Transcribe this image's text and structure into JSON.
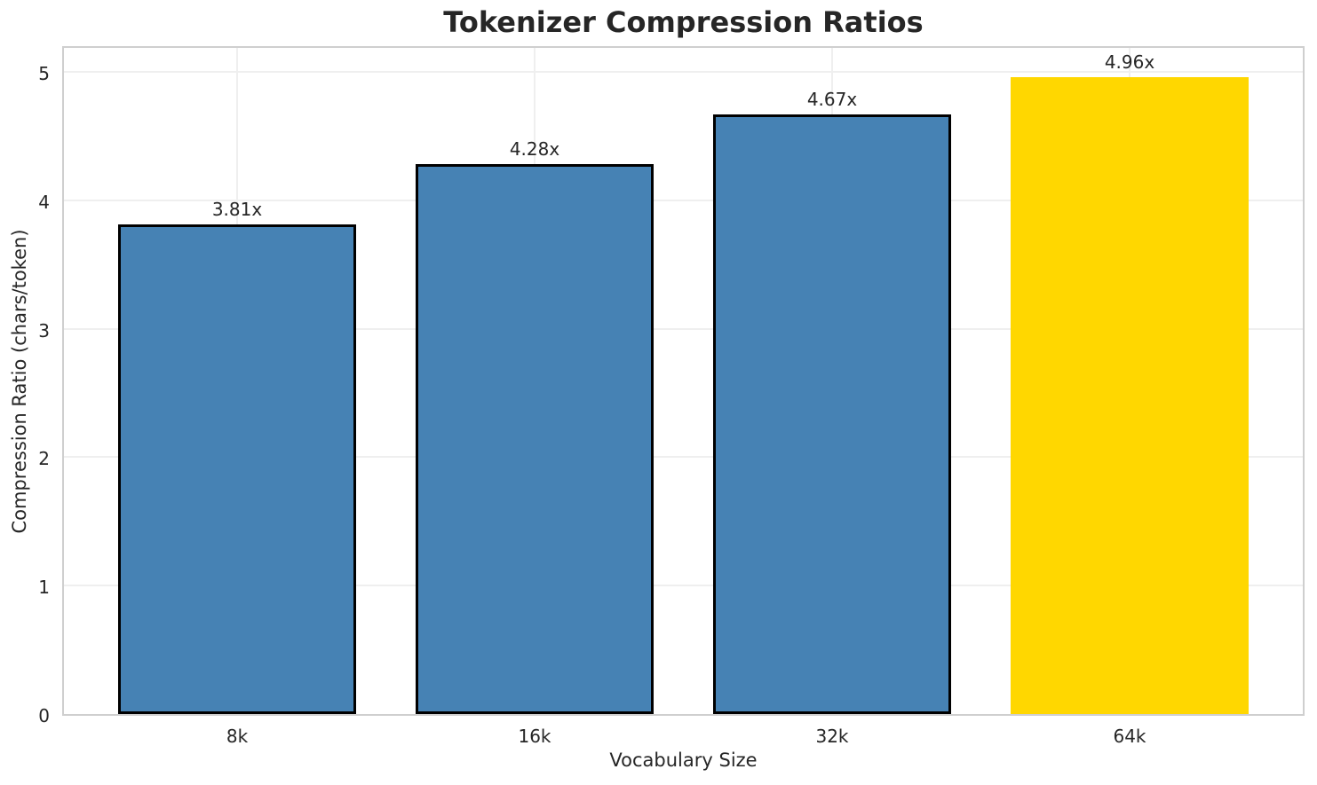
{
  "chart_data": {
    "type": "bar",
    "title": "Tokenizer Compression Ratios",
    "xlabel": "Vocabulary Size",
    "ylabel": "Compression Ratio (chars/token)",
    "categories": [
      "8k",
      "16k",
      "32k",
      "64k"
    ],
    "values": [
      3.81,
      4.28,
      4.67,
      4.96
    ],
    "bar_labels": [
      "3.81x",
      "4.28x",
      "4.67x",
      "4.96x"
    ],
    "bar_colors": [
      "#4682B4",
      "#4682B4",
      "#4682B4",
      "#FFD700"
    ],
    "bar_edges": [
      true,
      true,
      true,
      false
    ],
    "highlight_index": 3,
    "yticks": [
      0,
      1,
      2,
      3,
      4,
      5
    ],
    "ylim": [
      0,
      5.21
    ],
    "grid": true,
    "legend_position": "none",
    "colors": {
      "bar": "#4682B4",
      "highlight": "#FFD700",
      "bar_edge": "#000000",
      "text": "#262626",
      "grid": "#efefef",
      "spine": "#cfcfcf",
      "background": "#ffffff"
    }
  }
}
